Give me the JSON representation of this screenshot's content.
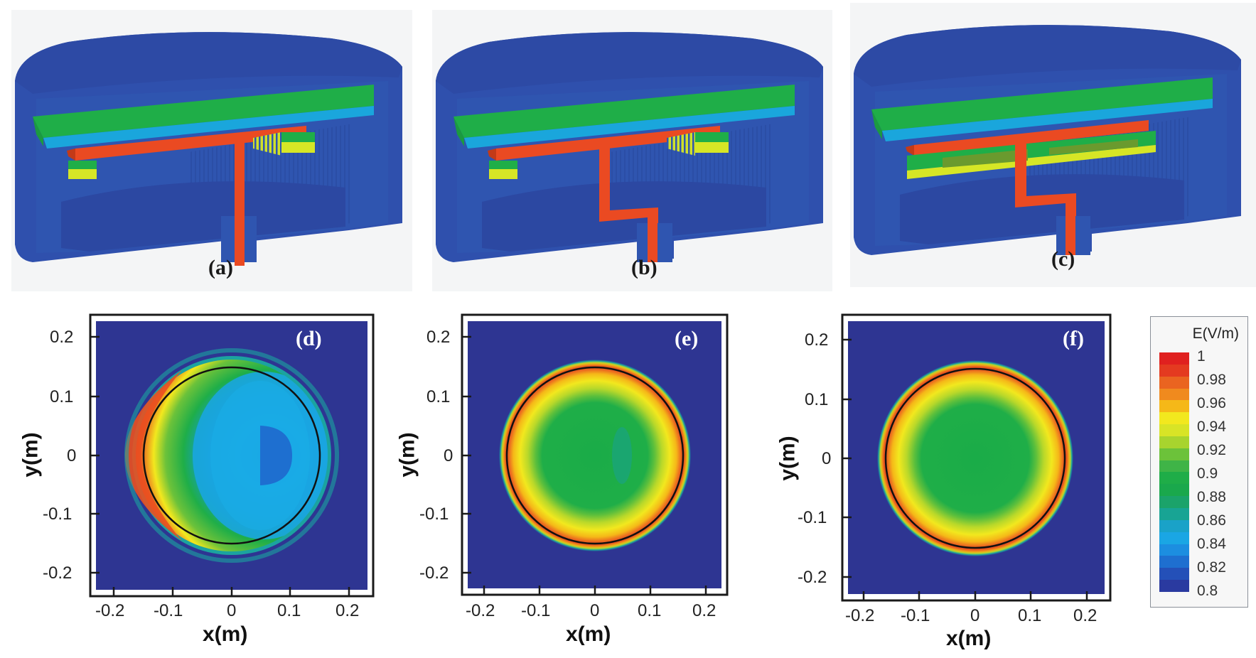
{
  "figure": {
    "panels_top": [
      {
        "id": "a",
        "label": "(a)",
        "description": "3D cutaway of cavity with straight vertical feed (T-shaped)"
      },
      {
        "id": "b",
        "label": "(b)",
        "description": "3D cutaway of cavity with offset (Z-shaped) feed"
      },
      {
        "id": "c",
        "label": "(c)",
        "description": "3D cutaway of cavity with offset feed and extended dielectric ring"
      }
    ],
    "panels_bottom": [
      {
        "id": "d",
        "label": "(d)"
      },
      {
        "id": "e",
        "label": "(e)"
      },
      {
        "id": "f",
        "label": "(f)"
      }
    ]
  },
  "axes": {
    "xlabel": "x(m)",
    "ylabel": "y(m)",
    "xticks": [
      "-0.2",
      "-0.1",
      "0",
      "0.1",
      "0.2"
    ],
    "yticks": [
      "0.2",
      "0.1",
      "0",
      "-0.1",
      "-0.2"
    ]
  },
  "legend": {
    "title": "E(V/m)",
    "levels": [
      "1",
      "0.98",
      "0.96",
      "0.94",
      "0.92",
      "0.9",
      "0.88",
      "0.86",
      "0.84",
      "0.82",
      "0.8"
    ],
    "colors": [
      "#e0201f",
      "#e43a20",
      "#ea6420",
      "#f08a1e",
      "#f5b818",
      "#f2e81e",
      "#d8e426",
      "#a8d42e",
      "#6cc23a",
      "#3fb447",
      "#1fad48",
      "#1aa84c",
      "#1ba36a",
      "#18a494",
      "#1aa2c8",
      "#1aa6e4",
      "#1c8ee0",
      "#1e6fd0",
      "#2450b8",
      "#2a3aa0"
    ]
  },
  "colors": {
    "cavity_blue": "#2f50a8",
    "cavity_blue_dark": "#2c46a0",
    "plate_green": "#1fae48",
    "plate_cyan": "#1aa6dc",
    "feed_red": "#ea4a22",
    "ring_yellow": "#d6e626",
    "field_bg": "#2e3592"
  },
  "chart_data": [
    {
      "type": "heatmap",
      "panel": "(d)",
      "title": "",
      "xlabel": "x(m)",
      "ylabel": "y(m)",
      "xlim": [
        -0.24,
        0.24
      ],
      "ylim": [
        -0.24,
        0.24
      ],
      "xticks": [
        -0.2,
        -0.1,
        0,
        0.1,
        0.2
      ],
      "yticks": [
        -0.2,
        -0.1,
        0,
        0.1,
        0.2
      ],
      "colorbar": {
        "label": "E(V/m)",
        "min": 0.8,
        "max": 1.0,
        "step": 0.02
      },
      "reference_circle_radius_m": 0.15,
      "field_summary": "Asymmetric: peak ~0.98-1.0 along left rim (x≈-0.15), green ~0.90 at left-center, cyan ~0.84-0.86 over right half, minimum ~0.82 region near (x≈0.07, y≈0); field decays to 0.8 outside r≈0.16"
    },
    {
      "type": "heatmap",
      "panel": "(e)",
      "title": "",
      "xlabel": "x(m)",
      "ylabel": "y(m)",
      "xlim": [
        -0.24,
        0.24
      ],
      "ylim": [
        -0.24,
        0.24
      ],
      "xticks": [
        -0.2,
        -0.1,
        0,
        0.1,
        0.2
      ],
      "yticks": [
        -0.2,
        -0.1,
        0,
        0.1,
        0.2
      ],
      "colorbar": {
        "label": "E(V/m)",
        "min": 0.8,
        "max": 1.0,
        "step": 0.02
      },
      "reference_circle_radius_m": 0.15,
      "field_summary": "Nearly axisymmetric: ring ~0.96-0.98 near r≈0.14-0.15, center ~0.90, slight ~0.88 patch at x≈0.05; decays to 0.8 outside r≈0.16"
    },
    {
      "type": "heatmap",
      "panel": "(f)",
      "title": "",
      "xlabel": "x(m)",
      "ylabel": "y(m)",
      "xlim": [
        -0.24,
        0.24
      ],
      "ylim": [
        -0.24,
        0.24
      ],
      "xticks": [
        -0.2,
        -0.1,
        0,
        0.1,
        0.2
      ],
      "yticks": [
        -0.2,
        -0.1,
        0,
        0.1,
        0.2
      ],
      "colorbar": {
        "label": "E(V/m)",
        "min": 0.8,
        "max": 1.0,
        "step": 0.02
      },
      "reference_circle_radius_m": 0.15,
      "field_summary": "Axisymmetric: ring ~0.96-0.98 near r≈0.14-0.15, uniform center ~0.90; decays to 0.8 outside r≈0.16"
    }
  ]
}
